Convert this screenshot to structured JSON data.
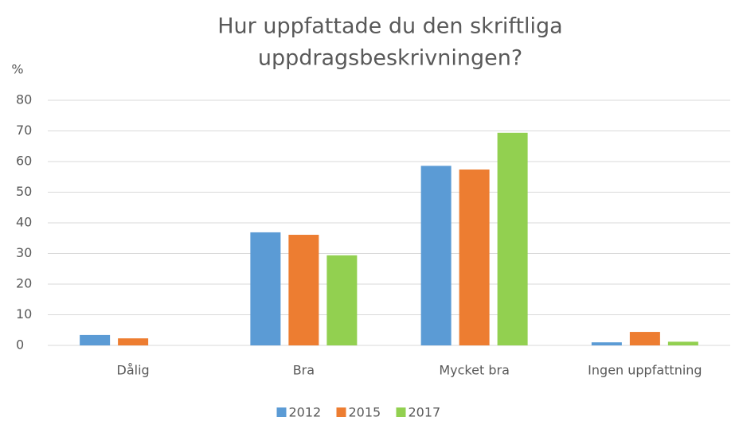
{
  "chart_data": {
    "type": "bar",
    "title": [
      "Hur uppfattade du den skriftliga",
      "uppdragsbeskrivningen?"
    ],
    "y_label": "%",
    "categories": [
      "Dålig",
      "Bra",
      "Mycket bra",
      "Ingen uppfattning"
    ],
    "series": [
      {
        "name": "2012",
        "color": "#5b9bd5",
        "values": [
          3.4,
          36.9,
          58.6,
          1.0
        ]
      },
      {
        "name": "2015",
        "color": "#ed7d31",
        "values": [
          2.3,
          36.1,
          57.4,
          4.4
        ]
      },
      {
        "name": "2017",
        "color": "#92d050",
        "values": [
          0,
          29.4,
          69.4,
          1.2
        ]
      }
    ],
    "ylim": [
      0,
      80
    ],
    "yticks": [
      0,
      10,
      20,
      30,
      40,
      50,
      60,
      70,
      80
    ],
    "grid": true,
    "legend": "bottom"
  }
}
